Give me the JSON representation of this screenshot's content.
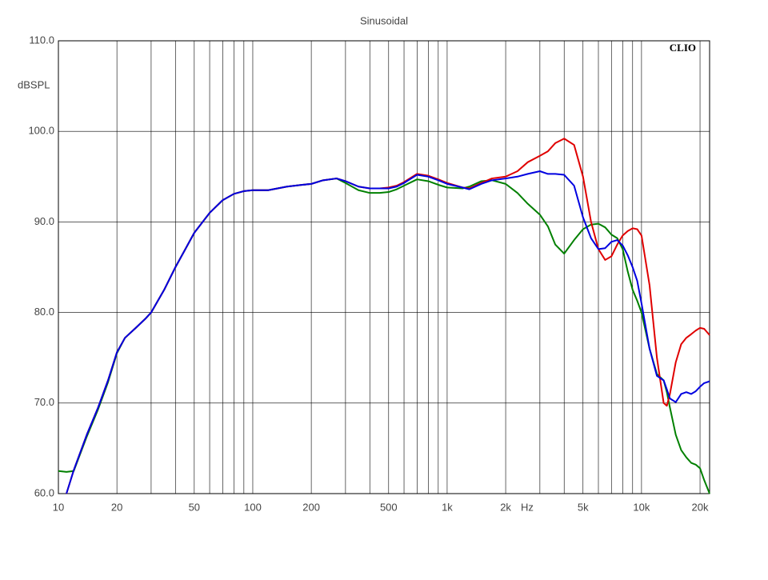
{
  "chart_data": {
    "type": "line",
    "title": "Sinusoidal",
    "ylabel": "dBSPL",
    "xlabel": "Hz",
    "annotation": "CLIO",
    "xscale": "log",
    "grid": true,
    "xlim": [
      10,
      22400
    ],
    "ylim": [
      60,
      110
    ],
    "xticks": [
      10,
      20,
      50,
      100,
      200,
      500,
      {
        "value": 1000,
        "label": "1k"
      },
      {
        "value": 2000,
        "label": "2k"
      },
      {
        "value": 5000,
        "label": "5k"
      },
      {
        "value": 10000,
        "label": "10k"
      },
      {
        "value": 20000,
        "label": "20k"
      }
    ],
    "xminor": [
      30,
      40,
      60,
      70,
      80,
      90,
      300,
      400,
      600,
      700,
      800,
      900,
      3000,
      4000,
      6000,
      7000,
      8000,
      9000
    ],
    "yticks": [
      {
        "value": 60,
        "label": "60.0"
      },
      {
        "value": 70,
        "label": "70.0"
      },
      {
        "value": 80,
        "label": "80.0"
      },
      {
        "value": 90,
        "label": "90.0"
      },
      {
        "value": 100,
        "label": "100.0"
      },
      {
        "value": 110,
        "label": "110.0"
      }
    ],
    "x": [
      10,
      11,
      12,
      14,
      16,
      18,
      20,
      22,
      25,
      28,
      30,
      35,
      40,
      45,
      50,
      60,
      70,
      80,
      90,
      100,
      120,
      150,
      180,
      200,
      230,
      270,
      300,
      350,
      400,
      450,
      500,
      550,
      600,
      700,
      800,
      900,
      1000,
      1200,
      1300,
      1500,
      1700,
      2000,
      2300,
      2600,
      3000,
      3300,
      3600,
      4000,
      4500,
      5000,
      5500,
      6000,
      6500,
      7000,
      7500,
      8000,
      8500,
      9000,
      9500,
      10000,
      11000,
      12000,
      13000,
      13500,
      14000,
      15000,
      16000,
      17000,
      18000,
      19000,
      20000,
      21000,
      22400
    ],
    "series": [
      {
        "color": "#008000",
        "values": [
          62.5,
          62.4,
          62.5,
          66.3,
          69.3,
          72.3,
          75.5,
          77.2,
          78.3,
          79.3,
          80.0,
          82.5,
          85.0,
          87.0,
          88.8,
          91.0,
          92.4,
          93.1,
          93.4,
          93.5,
          93.5,
          93.9,
          94.1,
          94.2,
          94.6,
          94.8,
          94.3,
          93.5,
          93.2,
          93.2,
          93.3,
          93.6,
          94.0,
          94.7,
          94.5,
          94.1,
          93.8,
          93.7,
          93.9,
          94.5,
          94.6,
          94.2,
          93.2,
          92.0,
          90.8,
          89.5,
          87.5,
          86.5,
          88.0,
          89.2,
          89.7,
          89.8,
          89.4,
          88.6,
          88.2,
          87.0,
          84.5,
          82.5,
          81.3,
          80.0,
          76.0,
          73.2,
          72.5,
          71.2,
          69.5,
          66.5,
          64.8,
          64.0,
          63.4,
          63.2,
          62.8,
          61.5,
          60.0
        ]
      },
      {
        "color": "#e00000",
        "values": [
          null,
          60,
          62.6,
          66.5,
          69.5,
          72.5,
          75.6,
          77.2,
          78.3,
          79.3,
          80.0,
          82.5,
          85.0,
          87.0,
          88.8,
          91.0,
          92.4,
          93.1,
          93.4,
          93.5,
          93.5,
          93.9,
          94.1,
          94.2,
          94.6,
          94.8,
          94.5,
          93.9,
          93.7,
          93.7,
          93.8,
          94.0,
          94.4,
          95.3,
          95.1,
          94.7,
          94.3,
          93.8,
          93.7,
          94.3,
          94.8,
          95.0,
          95.6,
          96.6,
          97.3,
          97.8,
          98.7,
          99.2,
          98.5,
          95.0,
          90.0,
          87.0,
          85.8,
          86.2,
          87.5,
          88.5,
          89.0,
          89.3,
          89.2,
          88.5,
          83.0,
          75.0,
          70.0,
          69.7,
          71.0,
          74.5,
          76.5,
          77.2,
          77.6,
          78.0,
          78.3,
          78.2,
          77.5
        ]
      },
      {
        "color": "#0000e0",
        "values": [
          null,
          60,
          62.6,
          66.5,
          69.5,
          72.5,
          75.6,
          77.2,
          78.3,
          79.3,
          80.0,
          82.5,
          85.0,
          87.0,
          88.8,
          91.0,
          92.4,
          93.1,
          93.4,
          93.5,
          93.5,
          93.9,
          94.1,
          94.2,
          94.6,
          94.8,
          94.5,
          93.9,
          93.7,
          93.7,
          93.7,
          93.9,
          94.3,
          95.2,
          95.0,
          94.6,
          94.2,
          93.8,
          93.6,
          94.2,
          94.6,
          94.8,
          95.0,
          95.3,
          95.6,
          95.3,
          95.3,
          95.2,
          94.0,
          90.5,
          88.2,
          87.0,
          87.1,
          87.8,
          88.0,
          87.4,
          86.3,
          85.0,
          83.5,
          81.0,
          76.0,
          73.0,
          72.5,
          71.5,
          70.5,
          70.1,
          71.0,
          71.2,
          71.0,
          71.3,
          71.8,
          72.2,
          72.4
        ]
      }
    ]
  }
}
